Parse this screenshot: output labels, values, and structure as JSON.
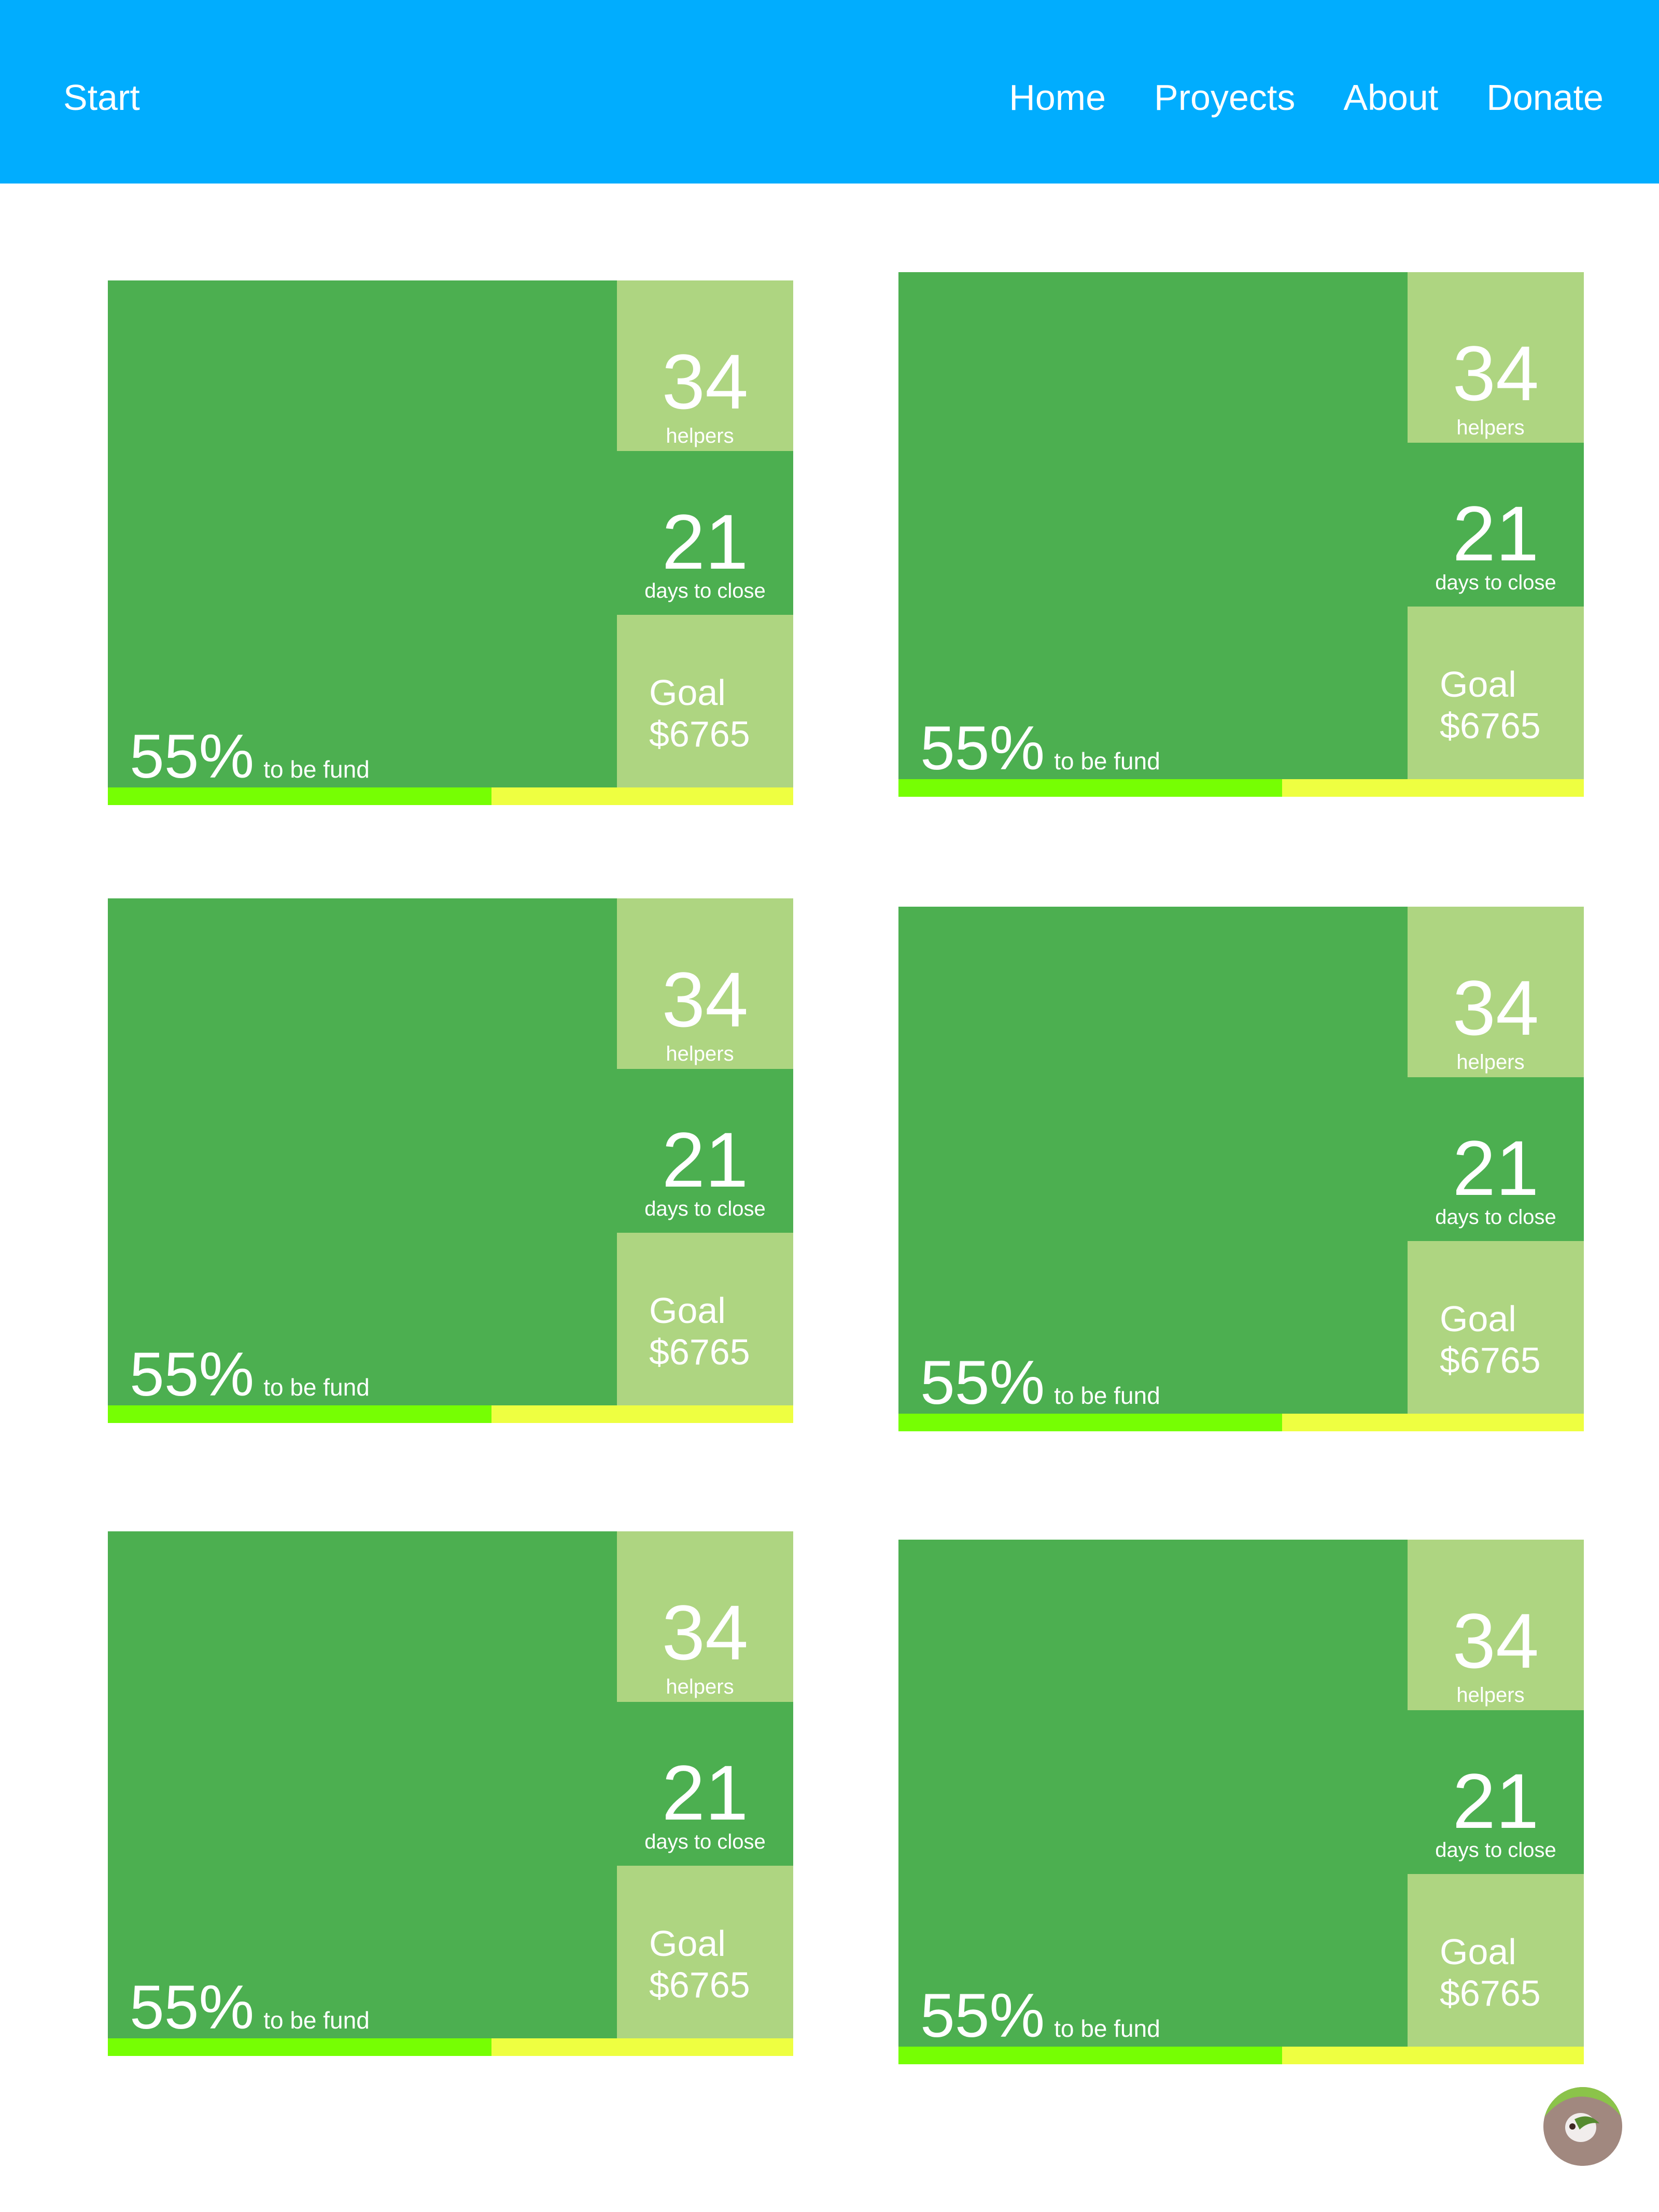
{
  "header": {
    "brand": "Start",
    "nav": [
      "Home",
      "Proyects",
      "About",
      "Donate"
    ]
  },
  "colors": {
    "header_bg": "#01adfe",
    "card_green": "#4caf50",
    "card_light": "#aed581",
    "progress_fill": "#76ff03",
    "progress_track": "#eeff41"
  },
  "cards": [
    {
      "helpers": "34",
      "helpers_label": "helpers",
      "days": "21",
      "days_label": "days to close",
      "goal_label": "Goal",
      "goal_amount": "$6765",
      "percent": "55%",
      "percent_label": "to be fund",
      "progress": 0.56
    },
    {
      "helpers": "34",
      "helpers_label": "helpers",
      "days": "21",
      "days_label": "days to close",
      "goal_label": "Goal",
      "goal_amount": "$6765",
      "percent": "55%",
      "percent_label": "to be fund",
      "progress": 0.56
    },
    {
      "helpers": "34",
      "helpers_label": "helpers",
      "days": "21",
      "days_label": "days to close",
      "goal_label": "Goal",
      "goal_amount": "$6765",
      "percent": "55%",
      "percent_label": "to be fund",
      "progress": 0.56
    },
    {
      "helpers": "34",
      "helpers_label": "helpers",
      "days": "21",
      "days_label": "days to close",
      "goal_label": "Goal",
      "goal_amount": "$6765",
      "percent": "55%",
      "percent_label": "to be fund",
      "progress": 0.56
    },
    {
      "helpers": "34",
      "helpers_label": "helpers",
      "days": "21",
      "days_label": "days to close",
      "goal_label": "Goal",
      "goal_amount": "$6765",
      "percent": "55%",
      "percent_label": "to be fund",
      "progress": 0.56
    },
    {
      "helpers": "34",
      "helpers_label": "helpers",
      "days": "21",
      "days_label": "days to close",
      "goal_label": "Goal",
      "goal_amount": "$6765",
      "percent": "55%",
      "percent_label": "to be fund",
      "progress": 0.56
    }
  ],
  "avatar_icon": "user-avatar-icon"
}
